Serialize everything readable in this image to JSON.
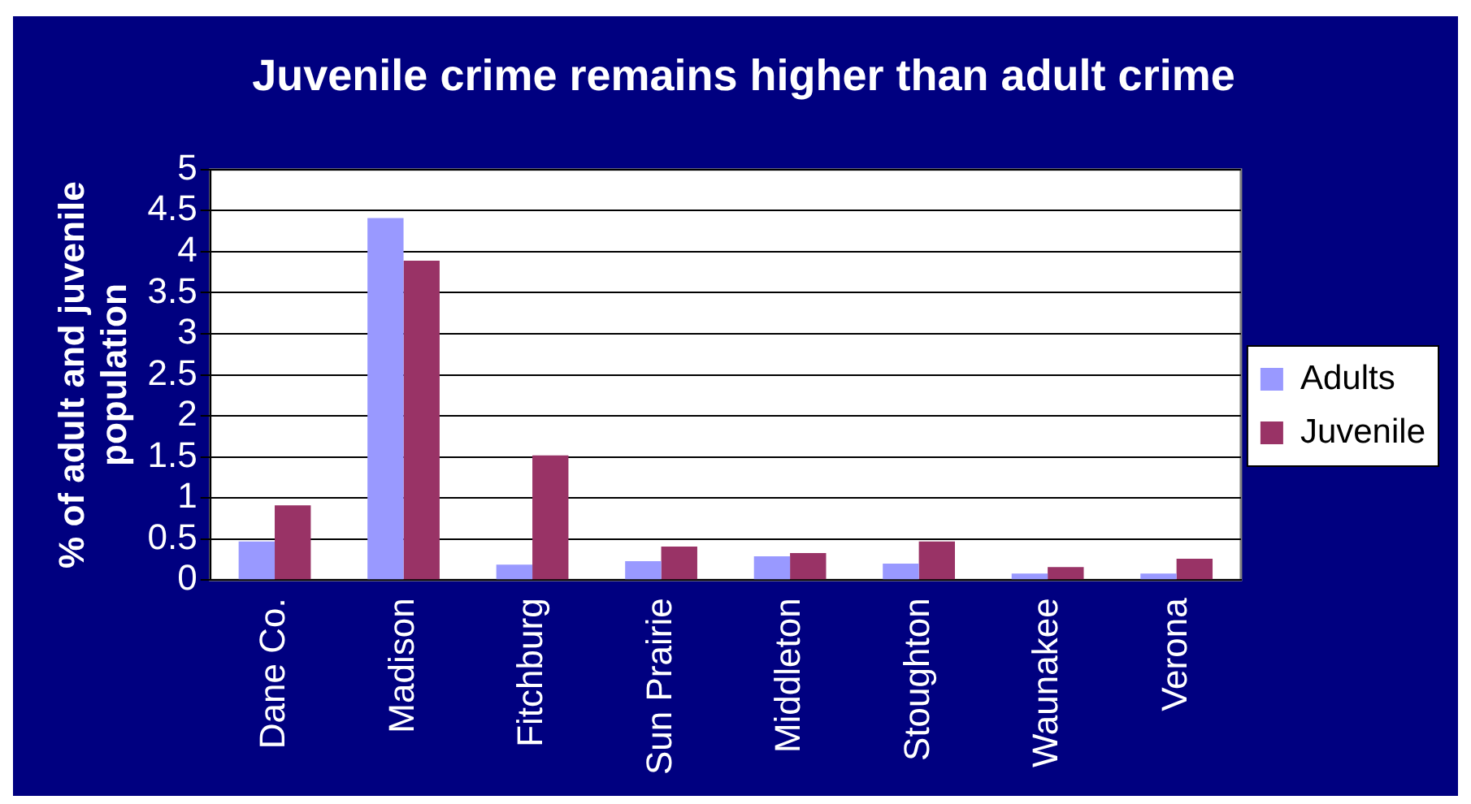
{
  "chart_data": {
    "type": "bar",
    "title": "Juvenile crime remains higher than adult crime",
    "ylabel": "% of adult and juvenile population",
    "categories": [
      "Dane Co.",
      "Madison",
      "Fitchburg",
      "Sun Prairie",
      "Middleton",
      "Stoughton",
      "Waunakee",
      "Verona"
    ],
    "series": [
      {
        "name": "Adults",
        "color": "#9999ff",
        "values": [
          0.47,
          4.41,
          0.19,
          0.23,
          0.29,
          0.2,
          0.08,
          0.08
        ]
      },
      {
        "name": "Juvenile",
        "color": "#993366",
        "values": [
          0.91,
          3.89,
          1.52,
          0.41,
          0.33,
          0.47,
          0.16,
          0.26
        ]
      }
    ],
    "ylim": [
      0,
      5
    ],
    "yticks": [
      0,
      0.5,
      1,
      1.5,
      2,
      2.5,
      3,
      3.5,
      4,
      4.5,
      5
    ],
    "grid": "y",
    "legend": "right"
  }
}
